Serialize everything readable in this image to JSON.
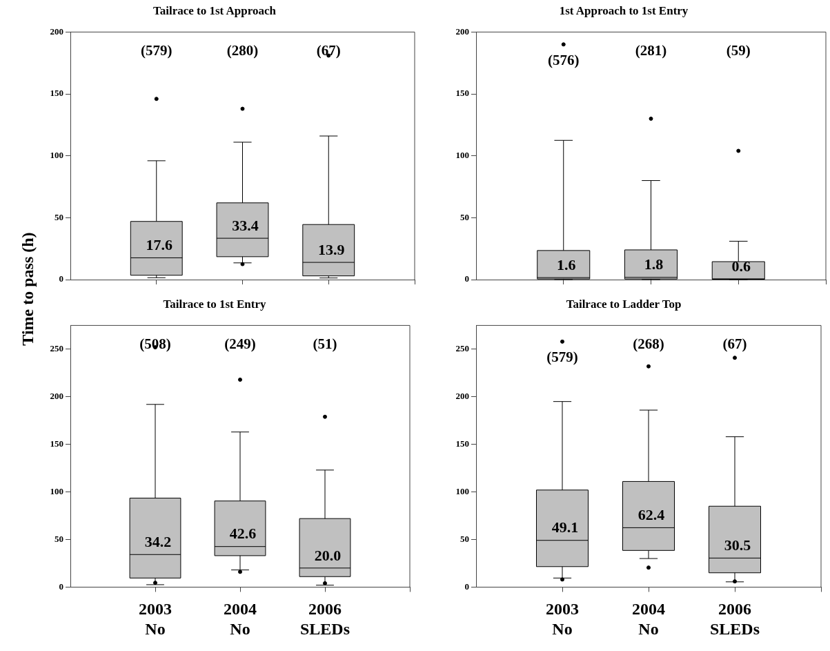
{
  "chart_data": [
    {
      "type": "box",
      "title": "Tailrace to 1st Approach",
      "ylabel": "Time to pass (h)",
      "categories": [
        null,
        null,
        null
      ],
      "color": "#c0c0c0",
      "ylim": [
        0,
        200
      ],
      "yticks": [
        0,
        50,
        100,
        150,
        200
      ],
      "grid": false,
      "legend": false,
      "tick_labels": "y",
      "value_labels": [
        "17.6",
        "33.4",
        "13.9"
      ],
      "boxes": [
        {
          "low": 1.5,
          "q1": 3.5,
          "median": 17.6,
          "q3": 47,
          "high": 96,
          "outliers": [
            146
          ]
        },
        {
          "low": 13.5,
          "q1": 18.5,
          "median": 33.4,
          "q3": 62,
          "high": 111,
          "outliers": [
            138,
            12.5
          ]
        },
        {
          "low": 1.3,
          "q1": 3,
          "median": 13.9,
          "q3": 44.5,
          "high": 116,
          "outliers": [
            181
          ]
        }
      ],
      "annotations": [
        "(579)",
        "(280)",
        "(67)"
      ]
    },
    {
      "type": "box",
      "title": "1st Approach to 1st Entry",
      "categories": [
        null,
        null,
        null
      ],
      "color": "#c0c0c0",
      "ylim": [
        0,
        200
      ],
      "yticks": [
        0,
        50,
        100,
        150,
        200
      ],
      "grid": false,
      "legend": false,
      "tick_labels": "y",
      "value_labels": [
        "1.6",
        "1.8",
        "0.6"
      ],
      "boxes": [
        {
          "low": 0,
          "q1": 0.5,
          "median": 1.6,
          "q3": 23.5,
          "high": 112.5,
          "outliers": [
            190
          ]
        },
        {
          "low": 0,
          "q1": 0.5,
          "median": 1.8,
          "q3": 24,
          "high": 80,
          "outliers": [
            130
          ]
        },
        {
          "low": 0,
          "q1": 0.3,
          "median": 0.6,
          "q3": 14.5,
          "high": 31,
          "outliers": [
            104
          ]
        }
      ],
      "annotations": [
        "(576)",
        "(281)",
        "(59)"
      ]
    },
    {
      "type": "box",
      "title": "Tailrace to 1st Entry",
      "categories": [
        "2003\nNo",
        "2004\nNo",
        "2006\nSLEDs"
      ],
      "color": "#c0c0c0",
      "ylim": [
        0,
        275
      ],
      "yticks": [
        0,
        50,
        100,
        150,
        200,
        250
      ],
      "grid": false,
      "legend": false,
      "value_labels": [
        "34.2",
        "42.6",
        "20.0"
      ],
      "boxes": [
        {
          "low": 2.5,
          "q1": 9.5,
          "median": 34.2,
          "q3": 93.5,
          "high": 192,
          "outliers": [
            252,
            4.5
          ]
        },
        {
          "low": 18,
          "q1": 33,
          "median": 42.6,
          "q3": 90.5,
          "high": 163,
          "outliers": [
            218,
            16
          ]
        },
        {
          "low": 2,
          "q1": 11,
          "median": 20.0,
          "q3": 72,
          "high": 123,
          "outliers": [
            179,
            4
          ]
        }
      ],
      "annotations": [
        "(508)",
        "(249)",
        "(51)"
      ]
    },
    {
      "type": "box",
      "title": "Tailrace to Ladder Top",
      "categories": [
        "2003\nNo",
        "2004\nNo",
        "2006\nSLEDs"
      ],
      "color": "#c0c0c0",
      "ylim": [
        0,
        275
      ],
      "yticks": [
        0,
        50,
        100,
        150,
        200,
        250
      ],
      "grid": false,
      "legend": false,
      "value_labels": [
        "49.1",
        "62.4",
        "30.5"
      ],
      "boxes": [
        {
          "low": 9.5,
          "q1": 21.5,
          "median": 49.1,
          "q3": 102,
          "high": 195,
          "outliers": [
            258,
            8
          ]
        },
        {
          "low": 30,
          "q1": 38.5,
          "median": 62.4,
          "q3": 111,
          "high": 186,
          "outliers": [
            232,
            20.5
          ]
        },
        {
          "low": 5.5,
          "q1": 15,
          "median": 30.5,
          "q3": 85,
          "high": 158,
          "outliers": [
            241,
            6
          ]
        }
      ],
      "annotations": [
        "(579)",
        "(268)",
        "(67)"
      ]
    }
  ]
}
